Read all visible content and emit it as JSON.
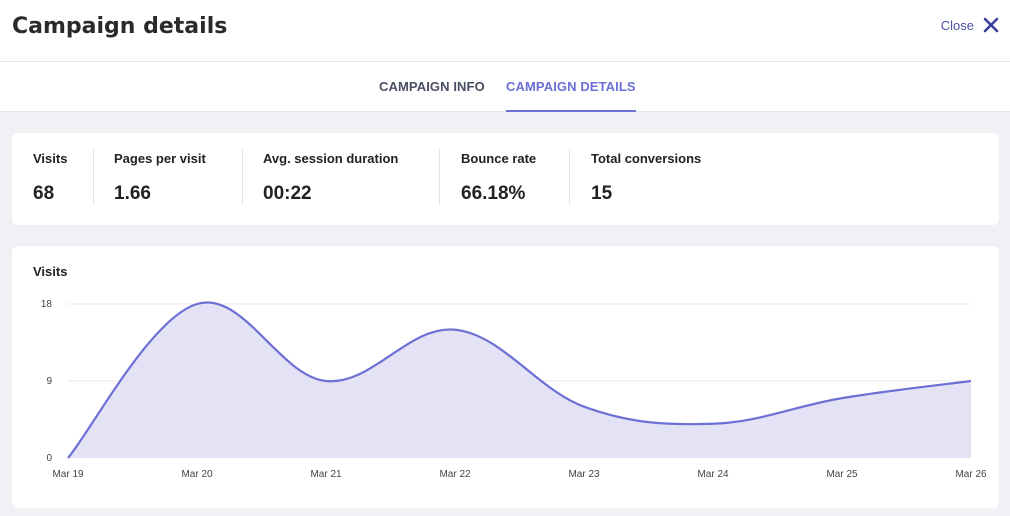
{
  "header": {
    "title": "Campaign details",
    "close_label": "Close"
  },
  "tabs": [
    {
      "label": "CAMPAIGN INFO",
      "active": false
    },
    {
      "label": "CAMPAIGN DETAILS",
      "active": true
    }
  ],
  "stats": [
    {
      "label": "Visits",
      "value": "68"
    },
    {
      "label": "Pages per visit",
      "value": "1.66"
    },
    {
      "label": "Avg. session duration",
      "value": "00:22"
    },
    {
      "label": "Bounce rate",
      "value": "66.18%"
    },
    {
      "label": "Total conversions",
      "value": "15"
    }
  ],
  "colors": {
    "accent": "#6c70d4",
    "area_fill": "#e3e3f5",
    "grid": "#e8e8ec"
  },
  "icons": {
    "close": "close-icon"
  },
  "chart_data": {
    "type": "area",
    "title": "Visits",
    "x": [
      "Mar 19",
      "Mar 20",
      "Mar 21",
      "Mar 22",
      "Mar 23",
      "Mar 24",
      "Mar 25",
      "Mar 26"
    ],
    "series": [
      {
        "values": [
          0,
          18,
          9,
          15,
          6,
          4,
          7,
          9
        ]
      }
    ],
    "ylim": [
      0,
      18
    ],
    "yticks": [
      0,
      9,
      18
    ],
    "grid": true
  }
}
